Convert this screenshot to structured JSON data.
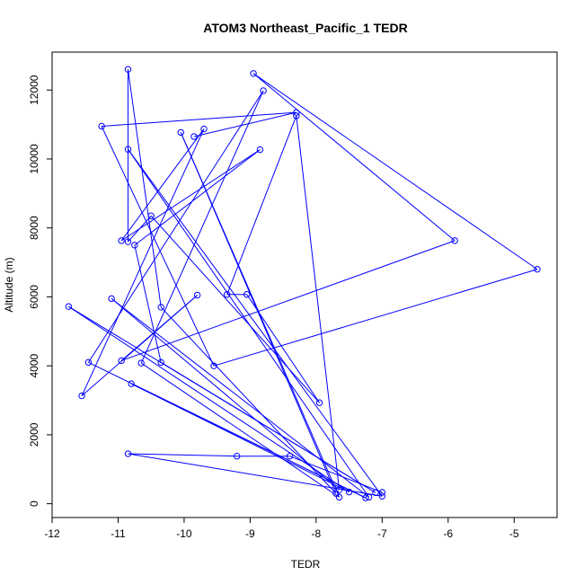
{
  "chart_data": {
    "type": "line",
    "title": "ATOM3 Northeast_Pacific_1 TEDR",
    "xlabel": "TEDR",
    "ylabel": "Altitude (m)",
    "xlim": [
      -12.0,
      -4.35
    ],
    "ylim": [
      -400,
      13100
    ],
    "xticks": [
      -12,
      -11,
      -10,
      -9,
      -8,
      -7,
      -6,
      -5
    ],
    "xtick_labels": [
      "-12",
      "-11",
      "-10",
      "-9",
      "-8",
      "-7",
      "-6",
      "-5"
    ],
    "yticks": [
      0,
      2000,
      4000,
      6000,
      8000,
      10000,
      12000
    ],
    "ytick_labels": [
      "0",
      "2000",
      "4000",
      "6000",
      "8000",
      "10000",
      "12000"
    ],
    "grid": false,
    "legend": "none",
    "series": [
      {
        "color": "#0000ff",
        "marker": "open-circle",
        "points": [
          {
            "x": -9.85,
            "y": 10650
          },
          {
            "x": -8.3,
            "y": 11350
          },
          {
            "x": -11.25,
            "y": 10950
          },
          {
            "x": -9.55,
            "y": 4000
          },
          {
            "x": -4.65,
            "y": 6800
          },
          {
            "x": -8.95,
            "y": 12480
          },
          {
            "x": -5.9,
            "y": 7630
          },
          {
            "x": -10.95,
            "y": 4150
          },
          {
            "x": -9.8,
            "y": 6050
          },
          {
            "x": -11.55,
            "y": 3130
          },
          {
            "x": -9.7,
            "y": 10870
          },
          {
            "x": -10.95,
            "y": 7630
          },
          {
            "x": -8.85,
            "y": 10270
          },
          {
            "x": -10.75,
            "y": 7500
          },
          {
            "x": -10.35,
            "y": 4100
          },
          {
            "x": -7.1,
            "y": 320
          },
          {
            "x": -11.75,
            "y": 5720
          },
          {
            "x": -7.5,
            "y": 340
          },
          {
            "x": -10.8,
            "y": 3480
          },
          {
            "x": -7.25,
            "y": 170
          },
          {
            "x": -11.45,
            "y": 4100
          },
          {
            "x": -8.8,
            "y": 11980
          },
          {
            "x": -10.65,
            "y": 4080
          },
          {
            "x": -7.65,
            "y": 190
          },
          {
            "x": -10.05,
            "y": 10770
          },
          {
            "x": -7.7,
            "y": 300
          },
          {
            "x": -10.35,
            "y": 5700
          },
          {
            "x": -10.85,
            "y": 12600
          },
          {
            "x": -10.85,
            "y": 7600
          },
          {
            "x": -10.5,
            "y": 8350
          },
          {
            "x": -7.95,
            "y": 2930
          },
          {
            "x": -9.05,
            "y": 6070
          },
          {
            "x": -9.35,
            "y": 6070
          },
          {
            "x": -8.3,
            "y": 11250
          },
          {
            "x": -7.65,
            "y": 400
          },
          {
            "x": -11.1,
            "y": 5950
          },
          {
            "x": -7.2,
            "y": 190
          },
          {
            "x": -10.85,
            "y": 10280
          },
          {
            "x": -7.0,
            "y": 220
          },
          {
            "x": -10.85,
            "y": 1450
          },
          {
            "x": -9.2,
            "y": 1380
          },
          {
            "x": -8.4,
            "y": 1380
          },
          {
            "x": -7.0,
            "y": 330
          }
        ]
      }
    ]
  }
}
